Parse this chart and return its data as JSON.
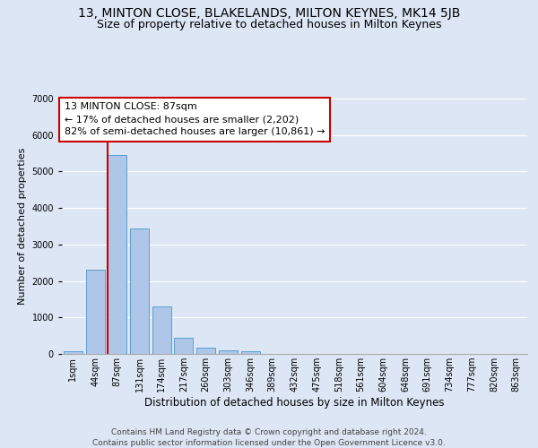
{
  "title": "13, MINTON CLOSE, BLAKELANDS, MILTON KEYNES, MK14 5JB",
  "subtitle": "Size of property relative to detached houses in Milton Keynes",
  "xlabel": "Distribution of detached houses by size in Milton Keynes",
  "ylabel": "Number of detached properties",
  "footer_line1": "Contains HM Land Registry data © Crown copyright and database right 2024.",
  "footer_line2": "Contains public sector information licensed under the Open Government Licence v3.0.",
  "bar_labels": [
    "1sqm",
    "44sqm",
    "87sqm",
    "131sqm",
    "174sqm",
    "217sqm",
    "260sqm",
    "303sqm",
    "346sqm",
    "389sqm",
    "432sqm",
    "475sqm",
    "518sqm",
    "561sqm",
    "604sqm",
    "648sqm",
    "691sqm",
    "734sqm",
    "777sqm",
    "820sqm",
    "863sqm"
  ],
  "bar_values": [
    80,
    2300,
    5450,
    3430,
    1310,
    450,
    175,
    105,
    75,
    0,
    0,
    0,
    0,
    0,
    0,
    0,
    0,
    0,
    0,
    0,
    0
  ],
  "bar_color": "#aec6e8",
  "bar_edge_color": "#5a9fd4",
  "ylim_max": 7000,
  "yticks": [
    0,
    1000,
    2000,
    3000,
    4000,
    5000,
    6000,
    7000
  ],
  "property_bar_index": 2,
  "vline_color": "#cc0000",
  "annotation_line1": "13 MINTON CLOSE: 87sqm",
  "annotation_line2": "← 17% of detached houses are smaller (2,202)",
  "annotation_line3": "82% of semi-detached houses are larger (10,861) →",
  "annotation_box_color": "#ffffff",
  "annotation_box_edge": "#cc0000",
  "bg_color": "#dce6f5",
  "grid_color": "#ffffff",
  "title_fontsize": 10,
  "subtitle_fontsize": 9,
  "xlabel_fontsize": 8.5,
  "ylabel_fontsize": 8,
  "tick_fontsize": 7,
  "annotation_fontsize": 8,
  "footer_fontsize": 6.5
}
